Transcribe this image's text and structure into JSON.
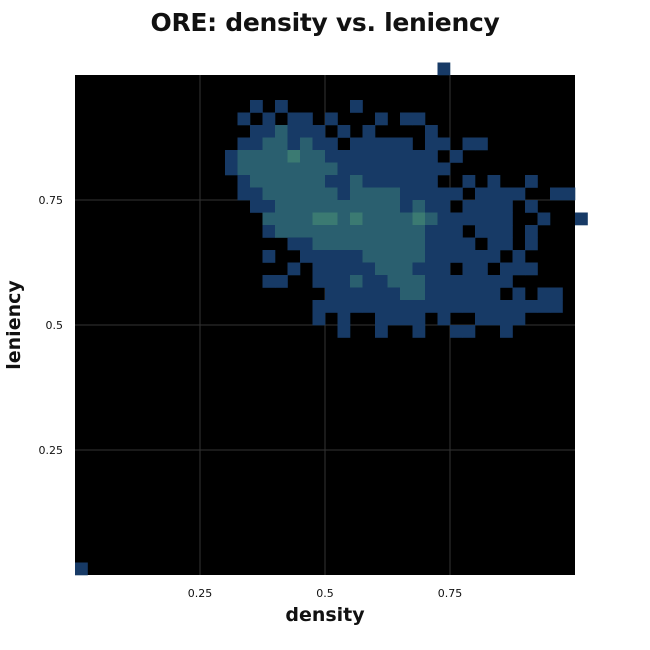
{
  "chart_data": {
    "type": "heatmap",
    "title": "ORE: density vs. leniency",
    "xlabel": "density",
    "ylabel": "leniency",
    "xlim": [
      0,
      1
    ],
    "ylim": [
      0,
      1
    ],
    "bins": 40,
    "xticks": [
      {
        "value": 0.25,
        "label": "0.25"
      },
      {
        "value": 0.5,
        "label": "0.5"
      },
      {
        "value": 0.75,
        "label": "0.75"
      }
    ],
    "yticks": [
      {
        "value": 0.25,
        "label": "0.25"
      },
      {
        "value": 0.5,
        "label": "0.5"
      },
      {
        "value": 0.75,
        "label": "0.75"
      }
    ],
    "grid": true,
    "background_color": "#000000",
    "grid_color": "#333333",
    "color_scale": [
      "#0d1f4a",
      "#173a66",
      "#2a5f6f",
      "#3b7a72"
    ],
    "cells": [
      [
        0,
        0,
        1
      ],
      [
        29,
        40,
        1
      ],
      [
        14,
        37,
        1
      ],
      [
        13,
        36,
        1
      ],
      [
        16,
        37,
        1
      ],
      [
        15,
        36,
        1
      ],
      [
        17,
        36,
        1
      ],
      [
        18,
        36,
        1
      ],
      [
        20,
        36,
        1
      ],
      [
        22,
        37,
        1
      ],
      [
        24,
        36,
        1
      ],
      [
        26,
        36,
        1
      ],
      [
        27,
        36,
        1
      ],
      [
        14,
        35,
        1
      ],
      [
        15,
        35,
        1
      ],
      [
        16,
        35,
        2
      ],
      [
        17,
        35,
        1
      ],
      [
        18,
        35,
        1
      ],
      [
        19,
        35,
        1
      ],
      [
        21,
        35,
        1
      ],
      [
        23,
        35,
        1
      ],
      [
        28,
        35,
        1
      ],
      [
        13,
        34,
        1
      ],
      [
        14,
        34,
        1
      ],
      [
        15,
        34,
        2
      ],
      [
        16,
        34,
        2
      ],
      [
        17,
        34,
        1
      ],
      [
        18,
        34,
        2
      ],
      [
        19,
        34,
        1
      ],
      [
        20,
        34,
        1
      ],
      [
        22,
        34,
        1
      ],
      [
        23,
        34,
        1
      ],
      [
        24,
        34,
        1
      ],
      [
        25,
        34,
        1
      ],
      [
        26,
        34,
        1
      ],
      [
        28,
        34,
        1
      ],
      [
        29,
        34,
        1
      ],
      [
        31,
        34,
        1
      ],
      [
        32,
        34,
        1
      ],
      [
        12,
        33,
        1
      ],
      [
        13,
        33,
        2
      ],
      [
        14,
        33,
        2
      ],
      [
        15,
        33,
        2
      ],
      [
        16,
        33,
        2
      ],
      [
        17,
        33,
        3
      ],
      [
        18,
        33,
        2
      ],
      [
        19,
        33,
        2
      ],
      [
        20,
        33,
        1
      ],
      [
        21,
        33,
        1
      ],
      [
        22,
        33,
        1
      ],
      [
        23,
        33,
        1
      ],
      [
        24,
        33,
        1
      ],
      [
        25,
        33,
        1
      ],
      [
        26,
        33,
        1
      ],
      [
        27,
        33,
        1
      ],
      [
        28,
        33,
        1
      ],
      [
        30,
        33,
        1
      ],
      [
        12,
        32,
        1
      ],
      [
        13,
        32,
        2
      ],
      [
        14,
        32,
        2
      ],
      [
        15,
        32,
        2
      ],
      [
        16,
        32,
        2
      ],
      [
        17,
        32,
        2
      ],
      [
        18,
        32,
        2
      ],
      [
        19,
        32,
        2
      ],
      [
        20,
        32,
        2
      ],
      [
        21,
        32,
        1
      ],
      [
        22,
        32,
        1
      ],
      [
        23,
        32,
        1
      ],
      [
        24,
        32,
        1
      ],
      [
        25,
        32,
        1
      ],
      [
        26,
        32,
        1
      ],
      [
        27,
        32,
        1
      ],
      [
        28,
        32,
        1
      ],
      [
        29,
        32,
        1
      ],
      [
        13,
        31,
        1
      ],
      [
        14,
        31,
        2
      ],
      [
        15,
        31,
        2
      ],
      [
        16,
        31,
        2
      ],
      [
        17,
        31,
        2
      ],
      [
        18,
        31,
        2
      ],
      [
        19,
        31,
        2
      ],
      [
        20,
        31,
        1
      ],
      [
        21,
        31,
        1
      ],
      [
        22,
        31,
        2
      ],
      [
        23,
        31,
        1
      ],
      [
        24,
        31,
        1
      ],
      [
        25,
        31,
        1
      ],
      [
        26,
        31,
        1
      ],
      [
        27,
        31,
        1
      ],
      [
        28,
        31,
        1
      ],
      [
        31,
        31,
        1
      ],
      [
        33,
        31,
        1
      ],
      [
        36,
        31,
        1
      ],
      [
        13,
        30,
        1
      ],
      [
        14,
        30,
        1
      ],
      [
        15,
        30,
        2
      ],
      [
        16,
        30,
        2
      ],
      [
        17,
        30,
        2
      ],
      [
        18,
        30,
        2
      ],
      [
        19,
        30,
        2
      ],
      [
        20,
        30,
        2
      ],
      [
        21,
        30,
        1
      ],
      [
        22,
        30,
        2
      ],
      [
        23,
        30,
        2
      ],
      [
        24,
        30,
        2
      ],
      [
        25,
        30,
        2
      ],
      [
        26,
        30,
        1
      ],
      [
        27,
        30,
        1
      ],
      [
        28,
        30,
        1
      ],
      [
        29,
        30,
        1
      ],
      [
        30,
        30,
        1
      ],
      [
        32,
        30,
        1
      ],
      [
        33,
        30,
        1
      ],
      [
        34,
        30,
        1
      ],
      [
        35,
        30,
        1
      ],
      [
        38,
        30,
        1
      ],
      [
        39,
        30,
        1
      ],
      [
        14,
        29,
        1
      ],
      [
        15,
        29,
        1
      ],
      [
        16,
        29,
        2
      ],
      [
        17,
        29,
        2
      ],
      [
        18,
        29,
        2
      ],
      [
        19,
        29,
        2
      ],
      [
        20,
        29,
        2
      ],
      [
        21,
        29,
        2
      ],
      [
        22,
        29,
        2
      ],
      [
        23,
        29,
        2
      ],
      [
        24,
        29,
        2
      ],
      [
        25,
        29,
        2
      ],
      [
        26,
        29,
        1
      ],
      [
        27,
        29,
        2
      ],
      [
        28,
        29,
        1
      ],
      [
        29,
        29,
        1
      ],
      [
        31,
        29,
        1
      ],
      [
        32,
        29,
        1
      ],
      [
        33,
        29,
        1
      ],
      [
        34,
        29,
        1
      ],
      [
        36,
        29,
        1
      ],
      [
        15,
        28,
        2
      ],
      [
        16,
        28,
        2
      ],
      [
        17,
        28,
        2
      ],
      [
        18,
        28,
        2
      ],
      [
        19,
        28,
        3
      ],
      [
        20,
        28,
        3
      ],
      [
        21,
        28,
        2
      ],
      [
        22,
        28,
        3
      ],
      [
        23,
        28,
        2
      ],
      [
        24,
        28,
        2
      ],
      [
        25,
        28,
        2
      ],
      [
        26,
        28,
        2
      ],
      [
        27,
        28,
        3
      ],
      [
        28,
        28,
        2
      ],
      [
        29,
        28,
        1
      ],
      [
        30,
        28,
        1
      ],
      [
        31,
        28,
        1
      ],
      [
        32,
        28,
        1
      ],
      [
        33,
        28,
        1
      ],
      [
        34,
        28,
        1
      ],
      [
        37,
        28,
        1
      ],
      [
        40,
        28,
        1
      ],
      [
        15,
        27,
        1
      ],
      [
        16,
        27,
        2
      ],
      [
        17,
        27,
        2
      ],
      [
        18,
        27,
        2
      ],
      [
        19,
        27,
        2
      ],
      [
        20,
        27,
        2
      ],
      [
        21,
        27,
        2
      ],
      [
        22,
        27,
        2
      ],
      [
        23,
        27,
        2
      ],
      [
        24,
        27,
        2
      ],
      [
        25,
        27,
        2
      ],
      [
        26,
        27,
        2
      ],
      [
        27,
        27,
        2
      ],
      [
        28,
        27,
        1
      ],
      [
        29,
        27,
        1
      ],
      [
        30,
        27,
        1
      ],
      [
        32,
        27,
        1
      ],
      [
        33,
        27,
        1
      ],
      [
        34,
        27,
        1
      ],
      [
        36,
        27,
        1
      ],
      [
        17,
        26,
        1
      ],
      [
        18,
        26,
        1
      ],
      [
        19,
        26,
        2
      ],
      [
        20,
        26,
        2
      ],
      [
        21,
        26,
        2
      ],
      [
        22,
        26,
        2
      ],
      [
        23,
        26,
        2
      ],
      [
        24,
        26,
        2
      ],
      [
        25,
        26,
        2
      ],
      [
        26,
        26,
        2
      ],
      [
        27,
        26,
        2
      ],
      [
        28,
        26,
        1
      ],
      [
        29,
        26,
        1
      ],
      [
        30,
        26,
        1
      ],
      [
        31,
        26,
        1
      ],
      [
        33,
        26,
        1
      ],
      [
        34,
        26,
        1
      ],
      [
        36,
        26,
        1
      ],
      [
        15,
        25,
        1
      ],
      [
        18,
        25,
        1
      ],
      [
        19,
        25,
        1
      ],
      [
        20,
        25,
        1
      ],
      [
        21,
        25,
        1
      ],
      [
        22,
        25,
        1
      ],
      [
        23,
        25,
        2
      ],
      [
        24,
        25,
        2
      ],
      [
        25,
        25,
        2
      ],
      [
        26,
        25,
        2
      ],
      [
        27,
        25,
        2
      ],
      [
        28,
        25,
        1
      ],
      [
        29,
        25,
        1
      ],
      [
        30,
        25,
        1
      ],
      [
        31,
        25,
        1
      ],
      [
        32,
        25,
        1
      ],
      [
        33,
        25,
        1
      ],
      [
        35,
        25,
        1
      ],
      [
        17,
        24,
        1
      ],
      [
        19,
        24,
        1
      ],
      [
        20,
        24,
        1
      ],
      [
        21,
        24,
        1
      ],
      [
        22,
        24,
        1
      ],
      [
        23,
        24,
        1
      ],
      [
        24,
        24,
        2
      ],
      [
        25,
        24,
        2
      ],
      [
        26,
        24,
        2
      ],
      [
        27,
        24,
        1
      ],
      [
        28,
        24,
        1
      ],
      [
        29,
        24,
        1
      ],
      [
        31,
        24,
        1
      ],
      [
        32,
        24,
        1
      ],
      [
        34,
        24,
        1
      ],
      [
        35,
        24,
        1
      ],
      [
        36,
        24,
        1
      ],
      [
        15,
        23,
        1
      ],
      [
        16,
        23,
        1
      ],
      [
        19,
        23,
        1
      ],
      [
        20,
        23,
        1
      ],
      [
        21,
        23,
        1
      ],
      [
        22,
        23,
        2
      ],
      [
        23,
        23,
        1
      ],
      [
        24,
        23,
        1
      ],
      [
        25,
        23,
        2
      ],
      [
        26,
        23,
        2
      ],
      [
        27,
        23,
        2
      ],
      [
        28,
        23,
        1
      ],
      [
        29,
        23,
        1
      ],
      [
        30,
        23,
        1
      ],
      [
        31,
        23,
        1
      ],
      [
        32,
        23,
        1
      ],
      [
        33,
        23,
        1
      ],
      [
        34,
        23,
        1
      ],
      [
        20,
        22,
        1
      ],
      [
        21,
        22,
        1
      ],
      [
        22,
        22,
        1
      ],
      [
        23,
        22,
        1
      ],
      [
        24,
        22,
        1
      ],
      [
        25,
        22,
        1
      ],
      [
        26,
        22,
        2
      ],
      [
        27,
        22,
        2
      ],
      [
        28,
        22,
        1
      ],
      [
        29,
        22,
        1
      ],
      [
        30,
        22,
        1
      ],
      [
        31,
        22,
        1
      ],
      [
        32,
        22,
        1
      ],
      [
        33,
        22,
        1
      ],
      [
        35,
        22,
        1
      ],
      [
        37,
        22,
        1
      ],
      [
        38,
        22,
        1
      ],
      [
        19,
        21,
        1
      ],
      [
        20,
        21,
        1
      ],
      [
        21,
        21,
        1
      ],
      [
        22,
        21,
        1
      ],
      [
        23,
        21,
        1
      ],
      [
        24,
        21,
        1
      ],
      [
        25,
        21,
        1
      ],
      [
        26,
        21,
        1
      ],
      [
        27,
        21,
        1
      ],
      [
        28,
        21,
        1
      ],
      [
        29,
        21,
        1
      ],
      [
        30,
        21,
        1
      ],
      [
        31,
        21,
        1
      ],
      [
        32,
        21,
        1
      ],
      [
        33,
        21,
        1
      ],
      [
        34,
        21,
        1
      ],
      [
        35,
        21,
        1
      ],
      [
        36,
        21,
        1
      ],
      [
        37,
        21,
        1
      ],
      [
        38,
        21,
        1
      ],
      [
        19,
        20,
        1
      ],
      [
        21,
        20,
        1
      ],
      [
        24,
        20,
        1
      ],
      [
        25,
        20,
        1
      ],
      [
        26,
        20,
        1
      ],
      [
        27,
        20,
        1
      ],
      [
        29,
        20,
        1
      ],
      [
        32,
        20,
        1
      ],
      [
        33,
        20,
        1
      ],
      [
        34,
        20,
        1
      ],
      [
        35,
        20,
        1
      ],
      [
        21,
        19,
        1
      ],
      [
        24,
        19,
        1
      ],
      [
        27,
        19,
        1
      ],
      [
        30,
        19,
        1
      ],
      [
        31,
        19,
        1
      ],
      [
        34,
        19,
        1
      ]
    ]
  }
}
